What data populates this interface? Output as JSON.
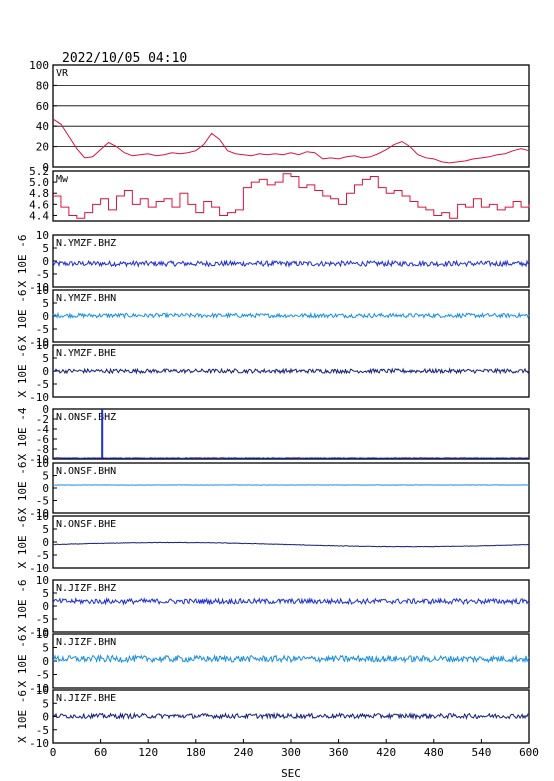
{
  "header": {
    "timestamp": "2022/10/05 04:10"
  },
  "colors": {
    "frame": "#000000",
    "vr_mw_line": "#dc143c",
    "bhz": "#1f2fd0",
    "bhn": "#1a8fe0",
    "bhe": "#15207a",
    "spike": "#1f2fd0"
  },
  "chart_data": [
    {
      "type": "line",
      "id": "vr",
      "title": "VR",
      "ylim": [
        0,
        100
      ],
      "yticks": [
        "0",
        "20",
        "40",
        "60",
        "80",
        "100"
      ],
      "grid": true,
      "color": "#dc143c",
      "x": [
        0,
        10,
        20,
        30,
        40,
        50,
        60,
        70,
        80,
        90,
        100,
        110,
        120,
        130,
        140,
        150,
        160,
        170,
        180,
        190,
        200,
        210,
        220,
        230,
        240,
        250,
        260,
        270,
        280,
        290,
        300,
        310,
        320,
        330,
        340,
        350,
        360,
        370,
        380,
        390,
        400,
        410,
        420,
        430,
        440,
        450,
        460,
        470,
        480,
        490,
        500,
        510,
        520,
        530,
        540,
        550,
        560,
        570,
        580,
        590,
        600
      ],
      "values": [
        47,
        42,
        30,
        18,
        9,
        10,
        17,
        24,
        20,
        14,
        11,
        12,
        13,
        11,
        12,
        14,
        13,
        14,
        16,
        22,
        33,
        27,
        16,
        13,
        12,
        11,
        13,
        12,
        13,
        12,
        14,
        12,
        15,
        14,
        8,
        9,
        8,
        10,
        11,
        9,
        10,
        13,
        17,
        22,
        25,
        20,
        12,
        9,
        8,
        5,
        4,
        5,
        6,
        8,
        9,
        10,
        12,
        13,
        16,
        18,
        16
      ]
    },
    {
      "type": "line",
      "id": "mw",
      "title": "Mw",
      "ylim": [
        4.3,
        5.2
      ],
      "yticks": [
        "4.4",
        "4.6",
        "4.8",
        "5.0",
        "5.2"
      ],
      "step": true,
      "color": "#dc143c",
      "x": [
        0,
        10,
        20,
        30,
        40,
        50,
        60,
        70,
        80,
        90,
        100,
        110,
        120,
        130,
        140,
        150,
        160,
        170,
        180,
        190,
        200,
        210,
        220,
        230,
        240,
        250,
        260,
        270,
        280,
        290,
        300,
        310,
        320,
        330,
        340,
        350,
        360,
        370,
        380,
        390,
        400,
        410,
        420,
        430,
        440,
        450,
        460,
        470,
        480,
        490,
        500,
        510,
        520,
        530,
        540,
        550,
        560,
        570,
        580,
        590,
        600
      ],
      "values": [
        4.75,
        4.55,
        4.4,
        4.35,
        4.45,
        4.6,
        4.7,
        4.5,
        4.75,
        4.85,
        4.6,
        4.7,
        4.55,
        4.65,
        4.7,
        4.55,
        4.8,
        4.6,
        4.45,
        4.65,
        4.55,
        4.4,
        4.45,
        4.5,
        4.9,
        5.0,
        5.05,
        4.95,
        5.0,
        5.15,
        5.1,
        4.9,
        4.95,
        4.85,
        4.75,
        4.7,
        4.6,
        4.8,
        4.95,
        5.05,
        5.1,
        4.9,
        4.8,
        4.85,
        4.75,
        4.65,
        4.55,
        4.5,
        4.4,
        4.45,
        4.35,
        4.6,
        4.55,
        4.7,
        4.55,
        4.6,
        4.5,
        4.55,
        4.65,
        4.55,
        4.6
      ]
    },
    {
      "type": "line",
      "id": "ymzf-bhz",
      "title": "N.YMZF.BHZ",
      "ylabel": "X 10E -6",
      "ylim": [
        -10,
        10
      ],
      "yticks": [
        "10",
        "5",
        "0",
        "-5",
        "-10"
      ],
      "baseline": -1.0,
      "amplitude": 1.0,
      "color": "#1f2fd0"
    },
    {
      "type": "line",
      "id": "ymzf-bhn",
      "title": "N.YMZF.BHN",
      "ylabel": "X 10E -6",
      "ylim": [
        -10,
        10
      ],
      "yticks": [
        "10",
        "5",
        "0",
        "-5",
        "-10"
      ],
      "baseline": 0.2,
      "amplitude": 0.8,
      "color": "#1a8fe0"
    },
    {
      "type": "line",
      "id": "ymzf-bhe",
      "title": "N.YMZF.BHE",
      "ylabel": "X 10E -6",
      "ylim": [
        -10,
        10
      ],
      "yticks": [
        "10",
        "5",
        "0",
        "-5",
        "-10"
      ],
      "baseline": 0.0,
      "amplitude": 0.8,
      "color": "#15207a"
    },
    {
      "type": "line",
      "id": "onsf-bhz",
      "title": "N.ONSF.BHZ",
      "ylabel": "X 10E -4",
      "ylim": [
        -10,
        0
      ],
      "yticks": [
        "0",
        "-2",
        "-4",
        "-6",
        "-8",
        "-10"
      ],
      "baseline": -9.8,
      "amplitude": 0.05,
      "spike": {
        "x": 62,
        "value": 0
      },
      "color": "#1f2fd0"
    },
    {
      "type": "line",
      "id": "onsf-bhn",
      "title": "N.ONSF.BHN",
      "ylabel": "X 10E -6",
      "ylim": [
        -10,
        10
      ],
      "yticks": [
        "10",
        "5",
        "0",
        "-5",
        "-10"
      ],
      "baseline": 1.2,
      "amplitude": 0.05,
      "color": "#1a8fe0"
    },
    {
      "type": "line",
      "id": "onsf-bhe",
      "title": "N.ONSF.BHE",
      "ylabel": "X 10E -6",
      "ylim": [
        -10,
        10
      ],
      "yticks": [
        "10",
        "5",
        "0",
        "-5",
        "-10"
      ],
      "baseline": -1.0,
      "amplitude": 0.1,
      "drift": 0.8,
      "color": "#15207a"
    },
    {
      "type": "line",
      "id": "jizf-bhz",
      "title": "N.JIZF.BHZ",
      "ylabel": "X 10E -6",
      "ylim": [
        -10,
        10
      ],
      "yticks": [
        "10",
        "5",
        "0",
        "-5",
        "-10"
      ],
      "baseline": 1.8,
      "amplitude": 1.0,
      "color": "#1f2fd0"
    },
    {
      "type": "line",
      "id": "jizf-bhn",
      "title": "N.JIZF.BHN",
      "ylabel": "X 10E -6",
      "ylim": [
        -10,
        10
      ],
      "yticks": [
        "10",
        "5",
        "0",
        "-5",
        "-10"
      ],
      "baseline": 0.8,
      "amplitude": 1.2,
      "color": "#1a8fe0"
    },
    {
      "type": "line",
      "id": "jizf-bhe",
      "title": "N.JIZF.BHE",
      "ylabel": "X 10E -6",
      "ylim": [
        -10,
        10
      ],
      "yticks": [
        "10",
        "5",
        "0",
        "-5",
        "-10"
      ],
      "baseline": 0.2,
      "amplitude": 0.9,
      "color": "#15207a"
    }
  ],
  "x_axis": {
    "label": "SEC",
    "xlim": [
      0,
      600
    ],
    "ticks": [
      0,
      60,
      120,
      180,
      240,
      300,
      360,
      420,
      480,
      540,
      600
    ],
    "tick_labels": [
      "0",
      "60",
      "120",
      "180",
      "240",
      "300",
      "360",
      "420",
      "480",
      "540",
      "600"
    ]
  }
}
